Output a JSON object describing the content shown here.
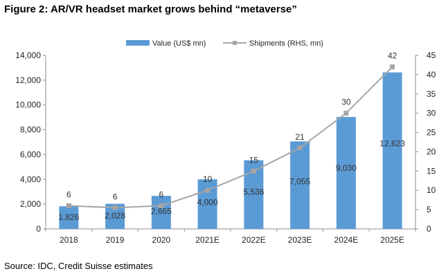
{
  "figure": {
    "title": "Figure 2: AR/VR headset market grows behind “metaverse”",
    "source": "Source: IDC, Credit Suisse estimates"
  },
  "chart_data": {
    "type": "bar",
    "categories": [
      "2018",
      "2019",
      "2020",
      "2021E",
      "2022E",
      "2023E",
      "2024E",
      "2025E"
    ],
    "series": [
      {
        "name": "Value (US$ mn)",
        "type": "bar",
        "axis": "left",
        "color": "#5b9bd5",
        "values": [
          1826,
          2028,
          2665,
          4000,
          5536,
          7055,
          9030,
          12623
        ],
        "labels": [
          "1,826",
          "2,028",
          "2,665",
          "4,000",
          "5,536",
          "7,055",
          "9,030",
          "12,623"
        ]
      },
      {
        "name": "Shipments (RHS, mn)",
        "type": "line",
        "axis": "right",
        "color": "#a5a5a5",
        "values": [
          6,
          5.5,
          6,
          10,
          15,
          21,
          30,
          42
        ],
        "labels": [
          "6",
          "6",
          "6",
          "10",
          "15",
          "21",
          "30",
          "42"
        ]
      }
    ],
    "y_left": {
      "lim": [
        0,
        14000
      ],
      "ticks": [
        0,
        2000,
        4000,
        6000,
        8000,
        10000,
        12000,
        14000
      ],
      "tick_labels": [
        "0",
        "2,000",
        "4,000",
        "6,000",
        "8,000",
        "10,000",
        "12,000",
        "14,000"
      ]
    },
    "y_right": {
      "lim": [
        0,
        45
      ],
      "ticks": [
        0,
        5,
        10,
        15,
        20,
        25,
        30,
        35,
        40,
        45
      ],
      "tick_labels": [
        "0",
        "5",
        "10",
        "15",
        "20",
        "25",
        "30",
        "35",
        "40",
        "45"
      ]
    },
    "grid": false,
    "legend_position": "top-center"
  }
}
